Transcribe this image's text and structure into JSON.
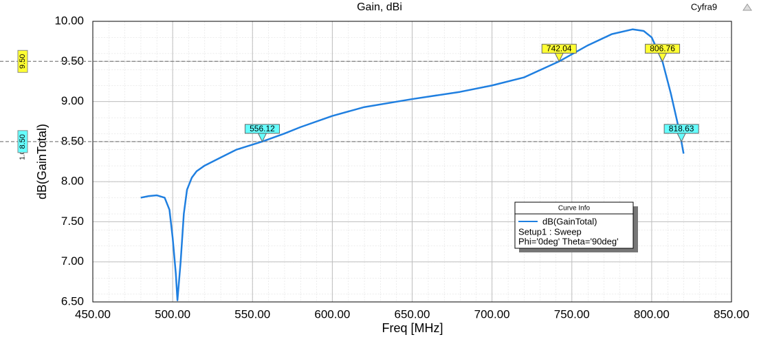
{
  "chart_data": {
    "type": "line",
    "title": "Gain, dBi",
    "corner_label": "Cyfra9",
    "x_label": "Freq [MHz]",
    "y_label": "dB(GainTotal)",
    "xlim": [
      450,
      850
    ],
    "ylim": [
      6.5,
      10
    ],
    "xticks": [
      {
        "value": 450,
        "label": "450.00"
      },
      {
        "value": 500,
        "label": "500.00"
      },
      {
        "value": 550,
        "label": "550.00"
      },
      {
        "value": 600,
        "label": "600.00"
      },
      {
        "value": 650,
        "label": "650.00"
      },
      {
        "value": 700,
        "label": "700.00"
      },
      {
        "value": 750,
        "label": "750.00"
      },
      {
        "value": 800,
        "label": "800.00"
      },
      {
        "value": 850,
        "label": "850.00"
      }
    ],
    "yticks": [
      {
        "value": 6.5,
        "label": "6.50"
      },
      {
        "value": 7,
        "label": "7.00"
      },
      {
        "value": 7.5,
        "label": "7.50"
      },
      {
        "value": 8,
        "label": "8.00"
      },
      {
        "value": 8.5,
        "label": "8.50"
      },
      {
        "value": 9,
        "label": "9.00"
      },
      {
        "value": 9.5,
        "label": "9.50"
      },
      {
        "value": 10,
        "label": "10.00"
      }
    ],
    "grid": true,
    "x": [
      480,
      485,
      490,
      495,
      498,
      500,
      502,
      503,
      505,
      507,
      509,
      512,
      515,
      520,
      530,
      540,
      556.12,
      570,
      580,
      600,
      620,
      650,
      680,
      700,
      720,
      742.04,
      760,
      775,
      788,
      795,
      800,
      806.76,
      812,
      816,
      818.63,
      820
    ],
    "series": [
      {
        "name": "dB(GainTotal)",
        "color": "#1f7fe0",
        "values": [
          7.8,
          7.82,
          7.83,
          7.8,
          7.65,
          7.3,
          6.85,
          6.52,
          7.0,
          7.6,
          7.9,
          8.05,
          8.13,
          8.2,
          8.3,
          8.4,
          8.5,
          8.6,
          8.68,
          8.82,
          8.93,
          9.03,
          9.12,
          9.2,
          9.3,
          9.5,
          9.7,
          9.84,
          9.9,
          9.88,
          9.8,
          9.5,
          9.1,
          8.75,
          8.5,
          8.35
        ]
      }
    ],
    "legend_title": "Curve Info",
    "legend_lines": [
      "Setup1 : Sweep",
      "Phi='0deg' Theta='90deg'"
    ],
    "hlines": [
      {
        "value": 9.5,
        "label": "9.50",
        "color": "#ffff33"
      },
      {
        "value": 8.5,
        "label": "8.50",
        "color": "#66ffff"
      }
    ],
    "hline_note": "1.00",
    "markers": [
      {
        "x": 556.12,
        "y": 8.5,
        "color": "#66ffff"
      },
      {
        "x": 742.04,
        "y": 9.5,
        "color": "#ffff33"
      },
      {
        "x": 806.76,
        "y": 9.5,
        "color": "#ffff33"
      },
      {
        "x": 818.63,
        "y": 8.5,
        "color": "#66ffff"
      }
    ]
  }
}
